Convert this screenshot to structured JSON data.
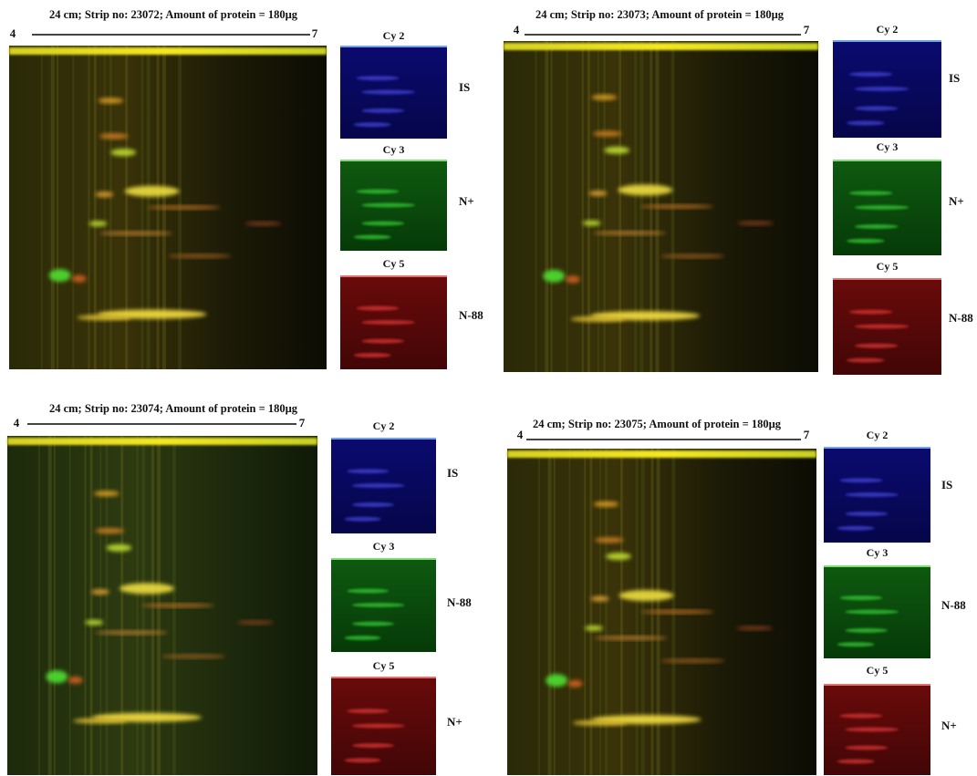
{
  "panels": [
    {
      "title": "24 cm; Strip no: 23072; Amount of protein = 180µg",
      "ph_start": "4",
      "ph_end": "7",
      "channels": [
        {
          "name": "Cy 2",
          "label": "IS"
        },
        {
          "name": "Cy 3",
          "label": "N+"
        },
        {
          "name": "Cy 5",
          "label": "N-88"
        }
      ]
    },
    {
      "title": "24 cm; Strip no: 23073; Amount of protein = 180µg",
      "ph_start": "4",
      "ph_end": "7",
      "channels": [
        {
          "name": "Cy 2",
          "label": "IS"
        },
        {
          "name": "Cy 3",
          "label": "N+"
        },
        {
          "name": "Cy 5",
          "label": "N-88"
        }
      ]
    },
    {
      "title": "24 cm; Strip no: 23074; Amount of protein = 180µg",
      "ph_start": "4",
      "ph_end": "7",
      "channels": [
        {
          "name": "Cy 2",
          "label": "IS"
        },
        {
          "name": "Cy 3",
          "label": "N-88"
        },
        {
          "name": "Cy 5",
          "label": "N+"
        }
      ]
    },
    {
      "title": "24 cm; Strip no: 23075; Amount of protein = 180µg",
      "ph_start": "4",
      "ph_end": "7",
      "channels": [
        {
          "name": "Cy 2",
          "label": "IS"
        },
        {
          "name": "Cy 3",
          "label": "N-88"
        },
        {
          "name": "Cy 5",
          "label": "N+"
        }
      ]
    }
  ]
}
